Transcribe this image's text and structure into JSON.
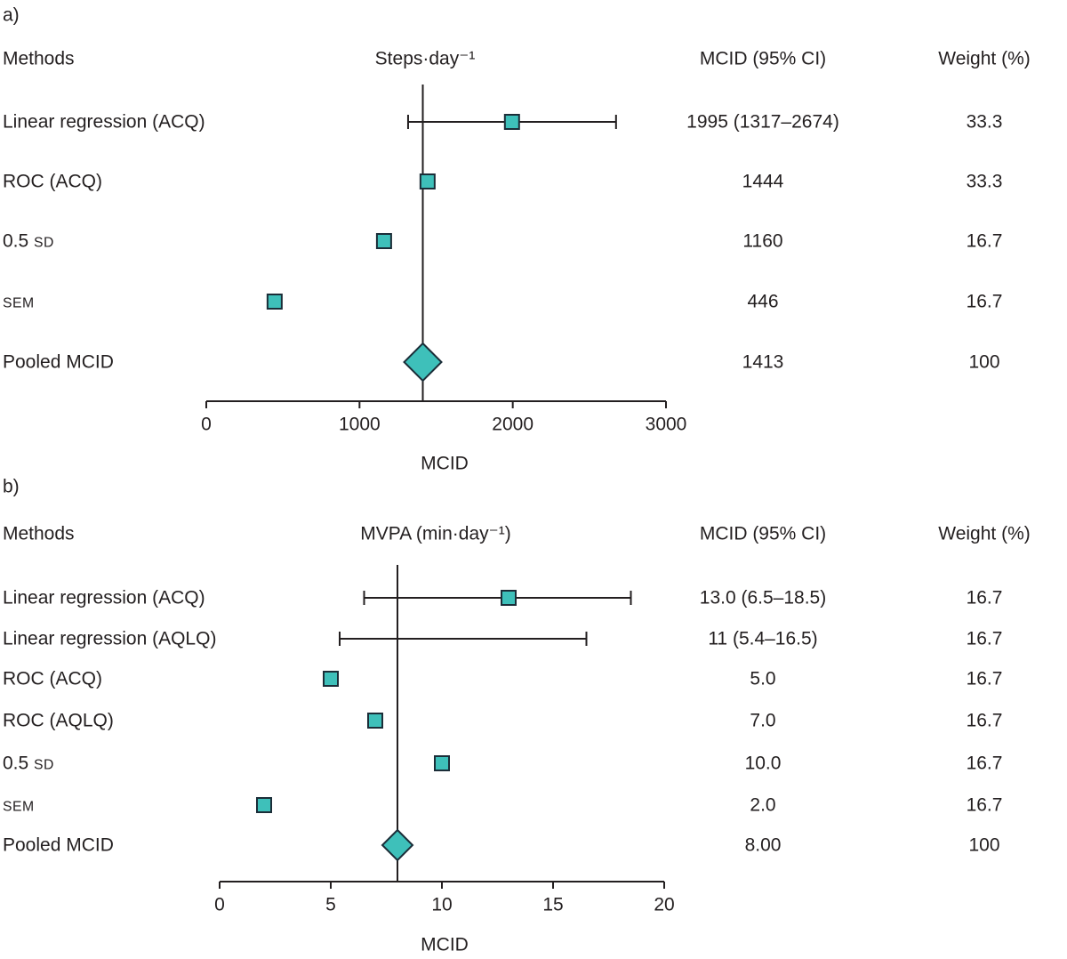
{
  "figure": {
    "text_color": "#231f20",
    "line_color": "#231f20",
    "marker_fill": "#3ec0ba",
    "marker_stroke": "#1b2d38"
  },
  "chart_data": [
    {
      "type": "forest",
      "panel_label": "a)",
      "columns": {
        "methods": "Methods",
        "mcid": "MCID (95% CI)",
        "weight": "Weight (%)"
      },
      "title": "Steps·day⁻¹",
      "xlabel": "MCID",
      "xlim": [
        0,
        3000
      ],
      "xticks": [
        0,
        1000,
        2000,
        3000
      ],
      "xtick_labels": [
        "0",
        "1000",
        "2000",
        "3000"
      ],
      "reference_line": 1413,
      "rows": [
        {
          "method": "Linear regression (ACQ)",
          "value": 1995,
          "ci": [
            1317,
            2674
          ],
          "marker": "square",
          "mcid": "1995 (1317–2674)",
          "weight": "33.3"
        },
        {
          "method": "ROC (ACQ)",
          "value": 1444,
          "marker": "square",
          "mcid": "1444",
          "weight": "33.3"
        },
        {
          "method": "0.5 SD",
          "small_caps": true,
          "value": 1160,
          "marker": "square",
          "mcid": "1160",
          "weight": "16.7"
        },
        {
          "method": "SEM",
          "small_caps": true,
          "value": 446,
          "marker": "square",
          "mcid": "446",
          "weight": "16.7"
        },
        {
          "method": "Pooled MCID",
          "value": 1413,
          "marker": "diamond",
          "mcid": "1413",
          "weight": "100"
        }
      ]
    },
    {
      "type": "forest",
      "panel_label": "b)",
      "columns": {
        "methods": "Methods",
        "mcid": "MCID (95% CI)",
        "weight": "Weight (%)"
      },
      "title": "MVPA (min·day⁻¹)",
      "xlabel": "MCID",
      "xlim": [
        0,
        20
      ],
      "xticks": [
        0,
        5,
        10,
        15,
        20
      ],
      "xtick_labels": [
        "0",
        "5",
        "10",
        "15",
        "20"
      ],
      "reference_line": 8,
      "rows": [
        {
          "method": "Linear regression (ACQ)",
          "value": 13.0,
          "ci": [
            6.5,
            18.5
          ],
          "marker": "square",
          "mcid": "13.0 (6.5–18.5)",
          "weight": "16.7"
        },
        {
          "method": "Linear regression (AQLQ)",
          "value": 11,
          "ci": [
            5.4,
            16.5
          ],
          "marker": "none",
          "mcid": "11 (5.4–16.5)",
          "weight": "16.7"
        },
        {
          "method": "ROC (ACQ)",
          "value": 5.0,
          "marker": "square",
          "mcid": "5.0",
          "weight": "16.7"
        },
        {
          "method": "ROC (AQLQ)",
          "value": 7.0,
          "marker": "square",
          "mcid": "7.0",
          "weight": "16.7"
        },
        {
          "method": "0.5 SD",
          "small_caps": true,
          "value": 10.0,
          "marker": "square",
          "mcid": "10.0",
          "weight": "16.7"
        },
        {
          "method": "SEM",
          "small_caps": true,
          "value": 2.0,
          "marker": "square",
          "mcid": "2.0",
          "weight": "16.7"
        },
        {
          "method": "Pooled MCID",
          "value": 8.0,
          "marker": "diamond",
          "mcid": "8.00",
          "weight": "100"
        }
      ]
    }
  ]
}
